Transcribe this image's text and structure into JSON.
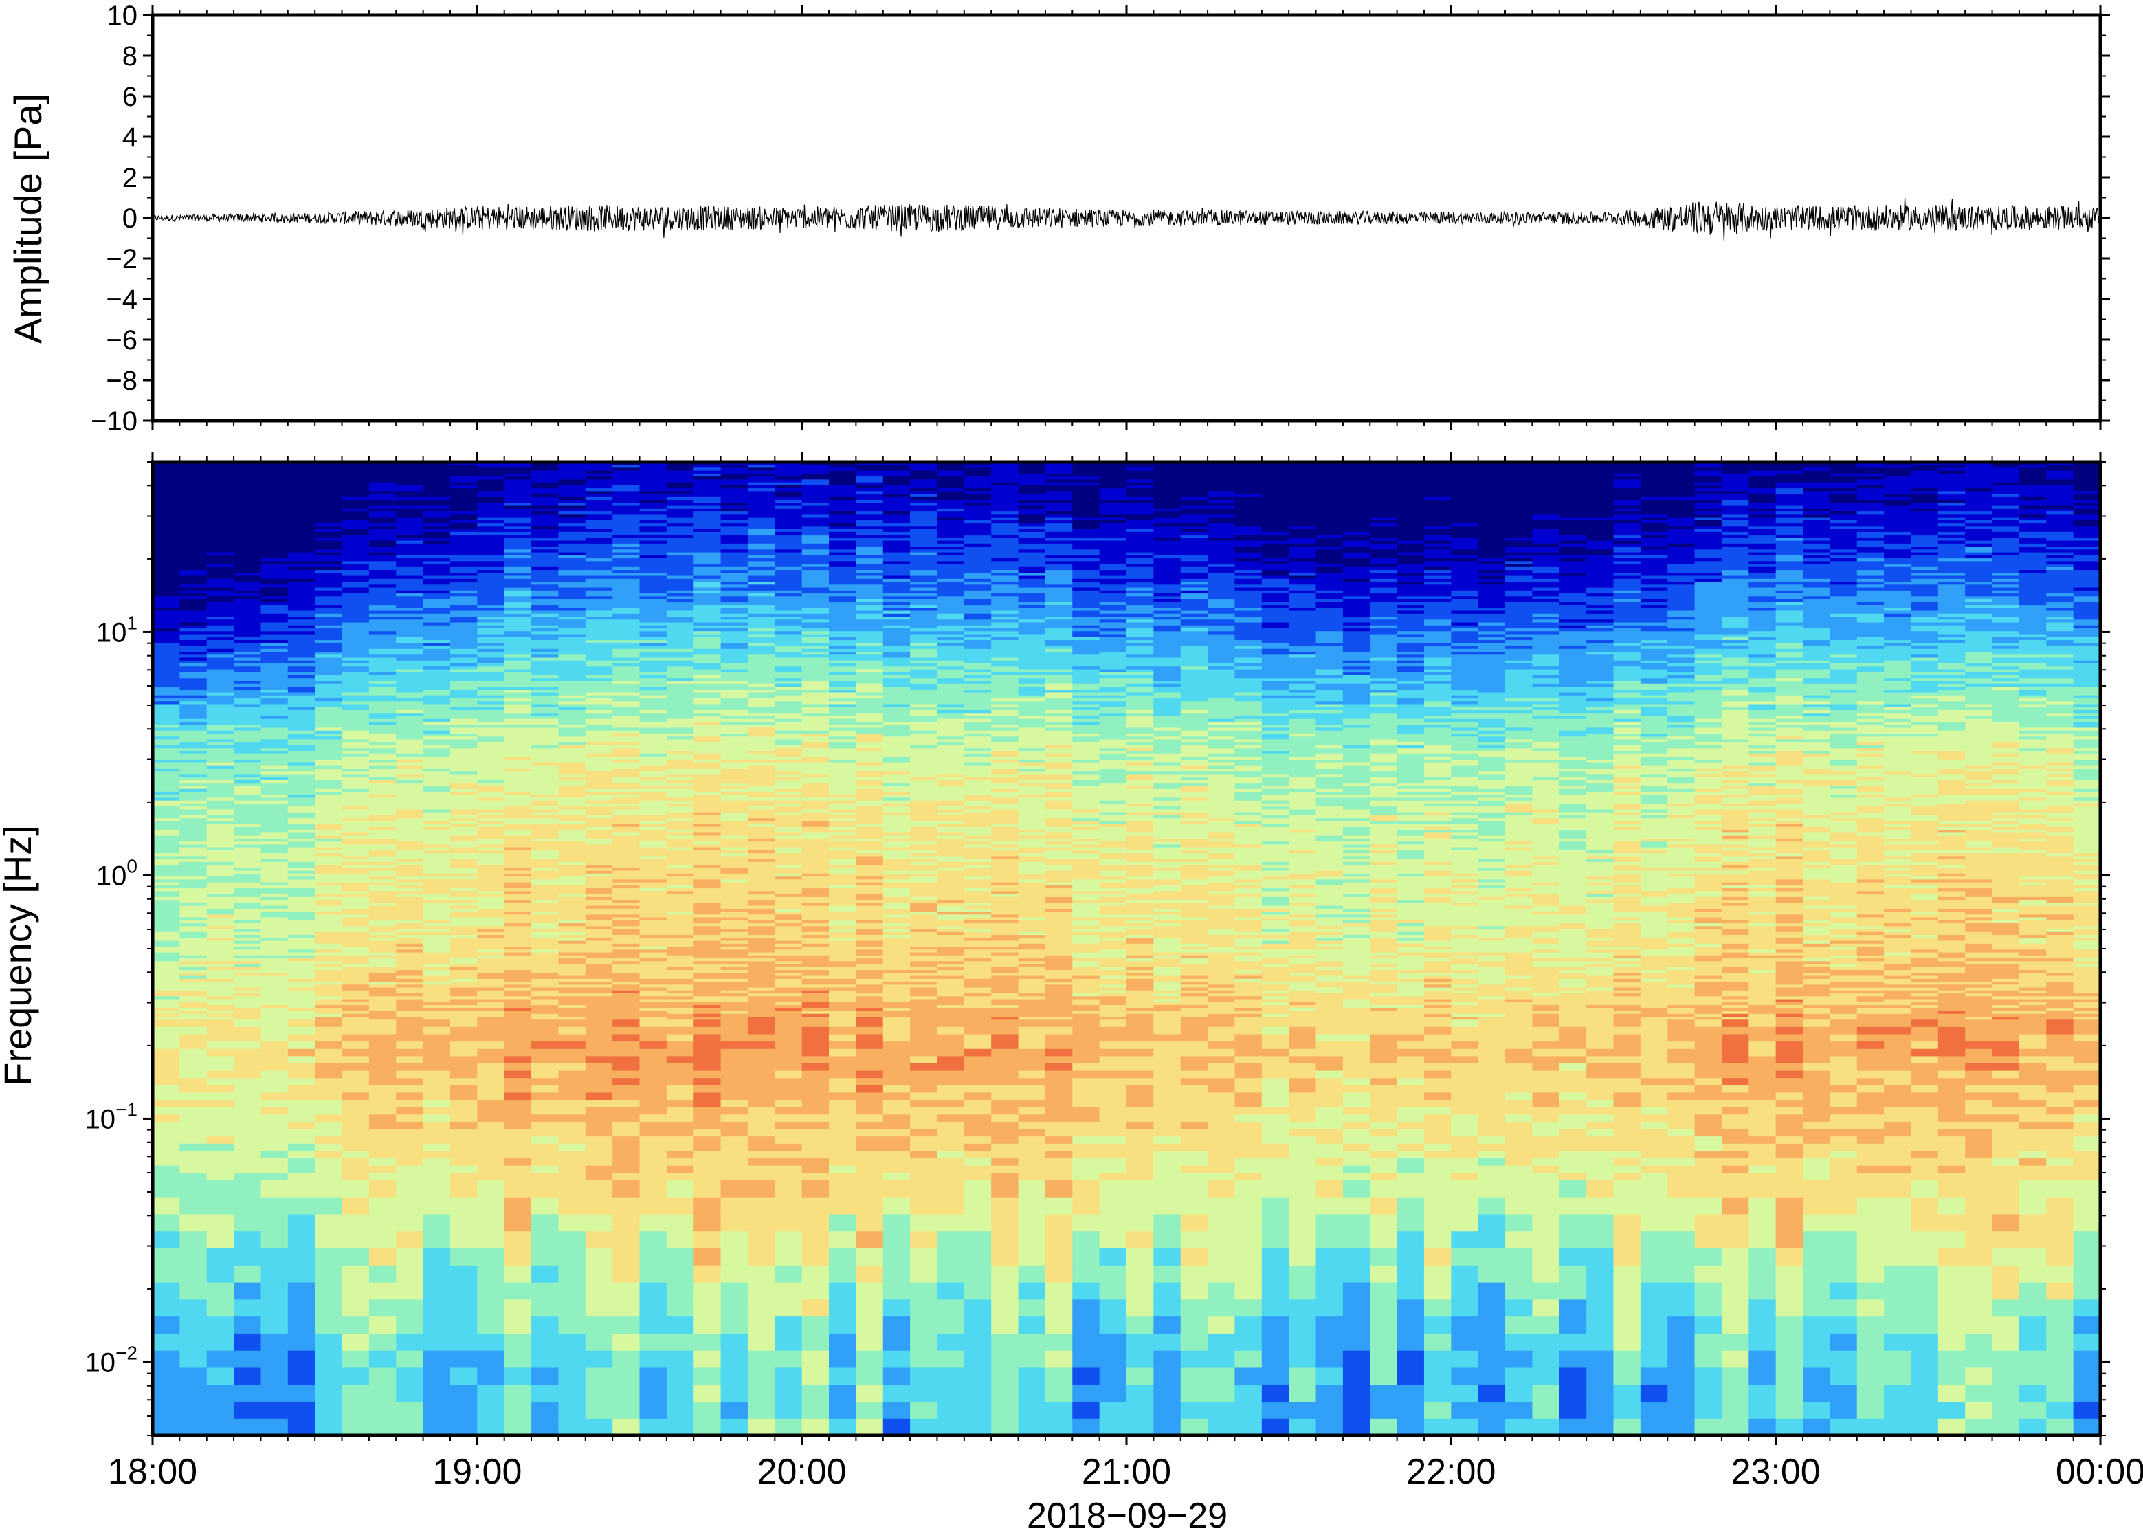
{
  "chart_data": [
    {
      "type": "line",
      "panel": "waveform",
      "ylabel": "Amplitude [Pa]",
      "ylim": [
        -10,
        10
      ],
      "y_ticks": [
        "10",
        "8",
        "6",
        "4",
        "2",
        "0",
        "−2",
        "−4",
        "−6",
        "−8",
        "−10"
      ],
      "y_tick_values": [
        10,
        8,
        6,
        4,
        2,
        0,
        -2,
        -4,
        -6,
        -8,
        -10
      ],
      "x_range_hours": [
        18,
        24
      ],
      "envelope": {
        "description_hours": [
          18.0,
          18.5,
          19.0,
          19.5,
          20.0,
          20.4,
          21.0,
          21.5,
          22.0,
          22.5,
          22.8,
          23.0,
          23.5,
          24.0
        ],
        "amplitude_pa": [
          0.15,
          0.25,
          0.6,
          0.65,
          0.55,
          0.7,
          0.4,
          0.35,
          0.3,
          0.3,
          0.9,
          0.6,
          0.65,
          0.55
        ]
      },
      "line_color": "#000000"
    },
    {
      "type": "heatmap",
      "panel": "spectrogram",
      "ylabel": "Frequency [Hz]",
      "y_scale": "log",
      "ylim_hz": [
        0.005,
        50
      ],
      "y_ticks": [
        {
          "base": "10",
          "exp": "1",
          "value": 10
        },
        {
          "base": "10",
          "exp": "0",
          "value": 1
        },
        {
          "base": "10",
          "exp": "−1",
          "value": 0.1
        },
        {
          "base": "10",
          "exp": "−2",
          "value": 0.01
        }
      ],
      "colormap": [
        "#000080",
        "#0000d0",
        "#1050f0",
        "#30a0f8",
        "#50d8f0",
        "#90f0c0",
        "#d8f8a0",
        "#f8e080",
        "#f8b060",
        "#f07040"
      ],
      "time_columns": 72,
      "frequency_profile": {
        "log10_hz": [
          -2.3,
          -2.0,
          -1.7,
          -1.4,
          -1.0,
          -0.7,
          -0.3,
          0.0,
          0.5,
          0.9,
          1.2,
          1.5,
          1.7
        ],
        "level": [
          0.42,
          0.44,
          0.55,
          0.66,
          0.75,
          0.82,
          0.72,
          0.7,
          0.62,
          0.4,
          0.22,
          0.08,
          0.02
        ]
      },
      "time_activity": {
        "hours": [
          18.0,
          18.5,
          19.0,
          19.5,
          20.0,
          20.5,
          21.0,
          21.5,
          22.0,
          22.5,
          23.0,
          23.5,
          24.0
        ],
        "offset": [
          -0.12,
          -0.05,
          0.04,
          0.06,
          0.06,
          0.04,
          0.02,
          -0.04,
          -0.03,
          -0.02,
          0.05,
          0.04,
          0.02
        ]
      }
    }
  ],
  "x_axis": {
    "tick_labels": [
      "18:00",
      "19:00",
      "20:00",
      "21:00",
      "22:00",
      "23:00",
      "00:00"
    ],
    "tick_hours": [
      18,
      19,
      20,
      21,
      22,
      23,
      24
    ],
    "date_label": "2018−09−29"
  }
}
